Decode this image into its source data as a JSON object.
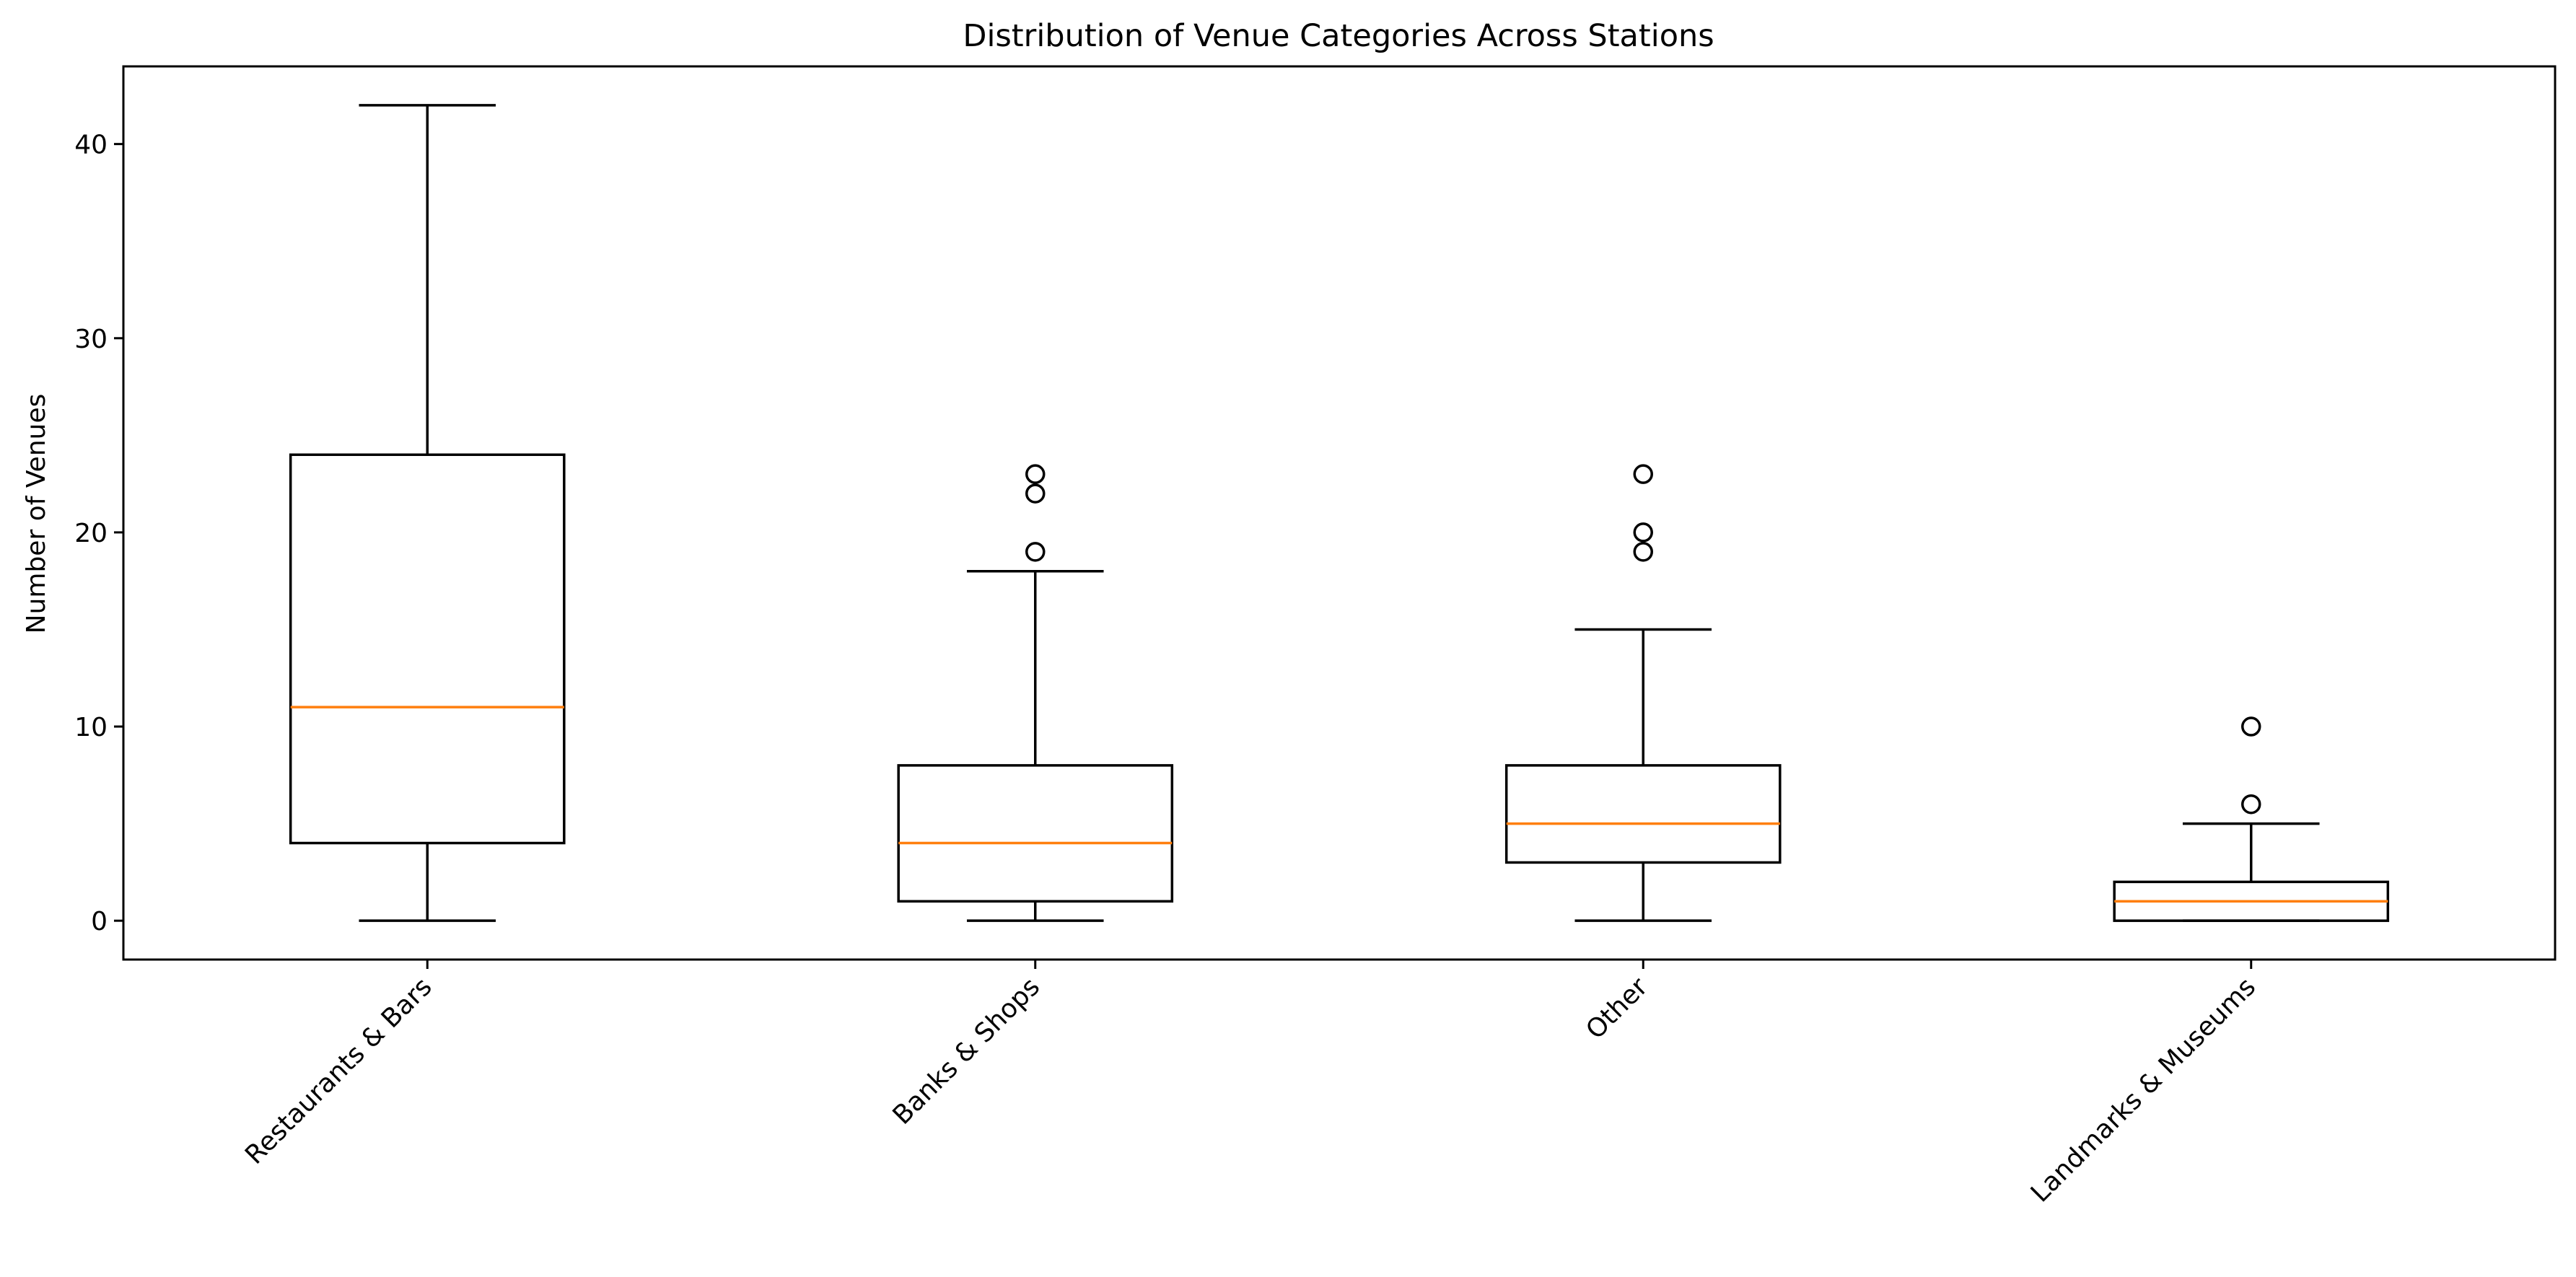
{
  "chart_data": {
    "type": "box",
    "title": "Distribution of Venue Categories Across Stations",
    "xlabel": "",
    "ylabel": "Number of Venues",
    "ylim": [
      -2,
      44
    ],
    "yticks": [
      0,
      10,
      20,
      30,
      40
    ],
    "grid": false,
    "categories": [
      "Restaurants & Bars",
      "Banks & Shops",
      "Other",
      "Landmarks & Museums"
    ],
    "boxes": [
      {
        "category": "Restaurants & Bars",
        "whisker_low": 0,
        "q1": 4,
        "median": 11,
        "q3": 24,
        "whisker_high": 42,
        "outliers": []
      },
      {
        "category": "Banks & Shops",
        "whisker_low": 0,
        "q1": 1,
        "median": 4,
        "q3": 8,
        "whisker_high": 18,
        "outliers": [
          19,
          22,
          23
        ]
      },
      {
        "category": "Other",
        "whisker_low": 0,
        "q1": 3,
        "median": 5,
        "q3": 8,
        "whisker_high": 15,
        "outliers": [
          19,
          20,
          23
        ]
      },
      {
        "category": "Landmarks & Museums",
        "whisker_low": 0,
        "q1": 0,
        "median": 1,
        "q3": 2,
        "whisker_high": 5,
        "outliers": [
          6,
          10
        ]
      }
    ],
    "colors": {
      "box_edge": "#000000",
      "median": "#ff7f0e",
      "outlier_edge": "#000000"
    }
  }
}
